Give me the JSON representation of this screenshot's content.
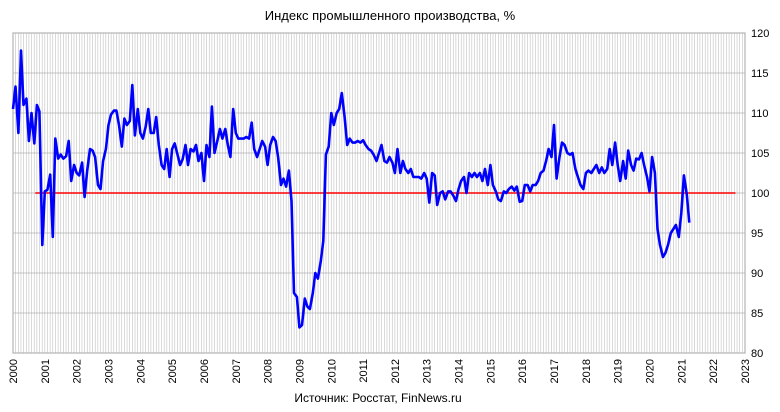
{
  "chart_data": {
    "type": "line",
    "title": "Индекс промышленного производства, %",
    "source": "Источник: Росстат, FinNews.ru",
    "xlabel": "",
    "ylabel": "",
    "x_tick_labels": [
      "2000",
      "2001",
      "2002",
      "2003",
      "2004",
      "2005",
      "2006",
      "2007",
      "2008",
      "2009",
      "2010",
      "2011",
      "2012",
      "2013",
      "2014",
      "2015",
      "2016",
      "2017",
      "2018",
      "2019",
      "2020",
      "2021",
      "2022",
      "2023"
    ],
    "y_tick_labels": [
      "80",
      "85",
      "90",
      "95",
      "100",
      "105",
      "110",
      "115",
      "120"
    ],
    "xlim": [
      2000,
      2023
    ],
    "ylim": [
      80,
      120
    ],
    "grid": true,
    "y_axis_position": "right",
    "reference_line": {
      "value": 100,
      "color": "#ff0000",
      "x_start": 2000.7,
      "x_end": 2022.7
    },
    "series": [
      {
        "color": "#0000ff",
        "points": [
          [
            2000.0,
            110.5
          ],
          [
            2000.08,
            113.3
          ],
          [
            2000.17,
            107.5
          ],
          [
            2000.25,
            117.8
          ],
          [
            2000.33,
            111.0
          ],
          [
            2000.42,
            111.8
          ],
          [
            2000.5,
            106.5
          ],
          [
            2000.58,
            110.0
          ],
          [
            2000.67,
            106.2
          ],
          [
            2000.75,
            111.0
          ],
          [
            2000.83,
            110.2
          ],
          [
            2000.92,
            93.5
          ],
          [
            2001.0,
            100.2
          ],
          [
            2001.08,
            100.4
          ],
          [
            2001.17,
            102.3
          ],
          [
            2001.25,
            94.5
          ],
          [
            2001.33,
            106.8
          ],
          [
            2001.42,
            104.3
          ],
          [
            2001.5,
            104.8
          ],
          [
            2001.58,
            104.3
          ],
          [
            2001.67,
            104.6
          ],
          [
            2001.75,
            106.5
          ],
          [
            2001.83,
            101.5
          ],
          [
            2001.92,
            103.5
          ],
          [
            2002.0,
            102.5
          ],
          [
            2002.08,
            102.2
          ],
          [
            2002.17,
            103.8
          ],
          [
            2002.25,
            99.5
          ],
          [
            2002.33,
            102.8
          ],
          [
            2002.42,
            105.5
          ],
          [
            2002.5,
            105.3
          ],
          [
            2002.58,
            104.5
          ],
          [
            2002.67,
            101.0
          ],
          [
            2002.75,
            100.5
          ],
          [
            2002.83,
            104.0
          ],
          [
            2002.92,
            105.5
          ],
          [
            2003.0,
            108.5
          ],
          [
            2003.08,
            109.8
          ],
          [
            2003.17,
            110.3
          ],
          [
            2003.25,
            110.3
          ],
          [
            2003.33,
            108.5
          ],
          [
            2003.42,
            105.8
          ],
          [
            2003.5,
            109.3
          ],
          [
            2003.58,
            108.5
          ],
          [
            2003.67,
            109.0
          ],
          [
            2003.75,
            113.5
          ],
          [
            2003.83,
            107.2
          ],
          [
            2003.92,
            110.5
          ],
          [
            2004.0,
            107.5
          ],
          [
            2004.08,
            106.8
          ],
          [
            2004.17,
            108.3
          ],
          [
            2004.25,
            110.5
          ],
          [
            2004.33,
            107.5
          ],
          [
            2004.42,
            107.5
          ],
          [
            2004.5,
            109.5
          ],
          [
            2004.58,
            106.0
          ],
          [
            2004.67,
            103.5
          ],
          [
            2004.75,
            103.0
          ],
          [
            2004.83,
            105.5
          ],
          [
            2004.92,
            102.0
          ],
          [
            2005.0,
            105.5
          ],
          [
            2005.08,
            106.2
          ],
          [
            2005.17,
            104.8
          ],
          [
            2005.25,
            103.5
          ],
          [
            2005.33,
            104.2
          ],
          [
            2005.42,
            106.0
          ],
          [
            2005.5,
            103.5
          ],
          [
            2005.58,
            105.5
          ],
          [
            2005.67,
            105.2
          ],
          [
            2005.75,
            106.0
          ],
          [
            2005.83,
            104.0
          ],
          [
            2005.92,
            105.0
          ],
          [
            2006.0,
            101.5
          ],
          [
            2006.08,
            106.0
          ],
          [
            2006.17,
            104.5
          ],
          [
            2006.25,
            110.8
          ],
          [
            2006.33,
            105.0
          ],
          [
            2006.42,
            106.5
          ],
          [
            2006.5,
            108.0
          ],
          [
            2006.58,
            106.8
          ],
          [
            2006.67,
            108.0
          ],
          [
            2006.75,
            106.0
          ],
          [
            2006.83,
            104.5
          ],
          [
            2006.92,
            110.5
          ],
          [
            2007.0,
            107.5
          ],
          [
            2007.08,
            106.8
          ],
          [
            2007.17,
            106.8
          ],
          [
            2007.25,
            106.8
          ],
          [
            2007.33,
            107.0
          ],
          [
            2007.42,
            106.8
          ],
          [
            2007.5,
            108.8
          ],
          [
            2007.58,
            105.5
          ],
          [
            2007.67,
            104.5
          ],
          [
            2007.75,
            105.5
          ],
          [
            2007.83,
            106.5
          ],
          [
            2007.92,
            105.8
          ],
          [
            2008.0,
            103.5
          ],
          [
            2008.08,
            106.0
          ],
          [
            2008.17,
            107.0
          ],
          [
            2008.25,
            106.5
          ],
          [
            2008.33,
            104.5
          ],
          [
            2008.42,
            101.0
          ],
          [
            2008.5,
            101.8
          ],
          [
            2008.58,
            100.8
          ],
          [
            2008.67,
            102.8
          ],
          [
            2008.75,
            99.0
          ],
          [
            2008.83,
            87.5
          ],
          [
            2008.92,
            87.0
          ],
          [
            2009.0,
            83.2
          ],
          [
            2009.08,
            83.5
          ],
          [
            2009.17,
            86.8
          ],
          [
            2009.25,
            85.8
          ],
          [
            2009.33,
            85.5
          ],
          [
            2009.42,
            87.5
          ],
          [
            2009.5,
            90.0
          ],
          [
            2009.58,
            89.3
          ],
          [
            2009.67,
            91.5
          ],
          [
            2009.75,
            94.0
          ],
          [
            2009.83,
            104.8
          ],
          [
            2009.92,
            105.8
          ],
          [
            2010.0,
            110.0
          ],
          [
            2010.08,
            108.5
          ],
          [
            2010.17,
            110.0
          ],
          [
            2010.25,
            110.5
          ],
          [
            2010.33,
            112.5
          ],
          [
            2010.42,
            109.5
          ],
          [
            2010.5,
            106.0
          ],
          [
            2010.58,
            106.8
          ],
          [
            2010.67,
            106.3
          ],
          [
            2010.75,
            106.3
          ],
          [
            2010.83,
            106.5
          ],
          [
            2010.92,
            106.3
          ],
          [
            2011.0,
            106.6
          ],
          [
            2011.08,
            106.0
          ],
          [
            2011.17,
            105.5
          ],
          [
            2011.25,
            105.3
          ],
          [
            2011.33,
            104.8
          ],
          [
            2011.42,
            104.0
          ],
          [
            2011.5,
            105.0
          ],
          [
            2011.58,
            106.0
          ],
          [
            2011.67,
            104.0
          ],
          [
            2011.75,
            103.8
          ],
          [
            2011.83,
            104.5
          ],
          [
            2011.92,
            103.8
          ],
          [
            2012.0,
            102.5
          ],
          [
            2012.08,
            105.5
          ],
          [
            2012.17,
            102.5
          ],
          [
            2012.25,
            104.0
          ],
          [
            2012.33,
            103.0
          ],
          [
            2012.42,
            102.5
          ],
          [
            2012.5,
            103.0
          ],
          [
            2012.58,
            102.0
          ],
          [
            2012.67,
            102.0
          ],
          [
            2012.75,
            102.0
          ],
          [
            2012.83,
            101.8
          ],
          [
            2012.92,
            102.5
          ],
          [
            2013.0,
            101.8
          ],
          [
            2013.08,
            98.8
          ],
          [
            2013.17,
            102.5
          ],
          [
            2013.25,
            102.2
          ],
          [
            2013.33,
            98.5
          ],
          [
            2013.42,
            100.0
          ],
          [
            2013.5,
            100.2
          ],
          [
            2013.58,
            99.2
          ],
          [
            2013.67,
            100.2
          ],
          [
            2013.75,
            100.2
          ],
          [
            2013.83,
            99.7
          ],
          [
            2013.92,
            99.0
          ],
          [
            2014.0,
            100.5
          ],
          [
            2014.08,
            101.5
          ],
          [
            2014.17,
            102.0
          ],
          [
            2014.25,
            100.0
          ],
          [
            2014.33,
            102.5
          ],
          [
            2014.42,
            102.0
          ],
          [
            2014.5,
            102.5
          ],
          [
            2014.58,
            102.0
          ],
          [
            2014.67,
            102.5
          ],
          [
            2014.75,
            101.5
          ],
          [
            2014.83,
            103.0
          ],
          [
            2014.92,
            101.0
          ],
          [
            2015.0,
            103.5
          ],
          [
            2015.08,
            101.0
          ],
          [
            2015.17,
            100.2
          ],
          [
            2015.25,
            99.2
          ],
          [
            2015.33,
            99.0
          ],
          [
            2015.42,
            100.2
          ],
          [
            2015.5,
            100.0
          ],
          [
            2015.58,
            100.5
          ],
          [
            2015.67,
            100.8
          ],
          [
            2015.75,
            100.3
          ],
          [
            2015.83,
            100.8
          ],
          [
            2015.92,
            98.9
          ],
          [
            2016.0,
            99.0
          ],
          [
            2016.08,
            101.0
          ],
          [
            2016.17,
            101.0
          ],
          [
            2016.25,
            100.2
          ],
          [
            2016.33,
            101.0
          ],
          [
            2016.42,
            101.0
          ],
          [
            2016.5,
            101.5
          ],
          [
            2016.58,
            102.5
          ],
          [
            2016.67,
            102.8
          ],
          [
            2016.75,
            104.0
          ],
          [
            2016.83,
            105.5
          ],
          [
            2016.92,
            104.5
          ],
          [
            2017.0,
            108.5
          ],
          [
            2017.08,
            101.8
          ],
          [
            2017.17,
            104.5
          ],
          [
            2017.25,
            106.3
          ],
          [
            2017.33,
            106.0
          ],
          [
            2017.42,
            105.0
          ],
          [
            2017.5,
            104.8
          ],
          [
            2017.58,
            105.0
          ],
          [
            2017.67,
            103.0
          ],
          [
            2017.75,
            102.0
          ],
          [
            2017.83,
            101.0
          ],
          [
            2017.92,
            100.5
          ],
          [
            2018.0,
            102.5
          ],
          [
            2018.08,
            102.8
          ],
          [
            2018.17,
            102.5
          ],
          [
            2018.25,
            103.0
          ],
          [
            2018.33,
            103.5
          ],
          [
            2018.42,
            102.5
          ],
          [
            2018.5,
            103.2
          ],
          [
            2018.58,
            102.5
          ],
          [
            2018.67,
            103.0
          ],
          [
            2018.75,
            105.5
          ],
          [
            2018.83,
            103.5
          ],
          [
            2018.92,
            106.3
          ],
          [
            2019.0,
            103.5
          ],
          [
            2019.08,
            101.5
          ],
          [
            2019.17,
            104.0
          ],
          [
            2019.25,
            101.8
          ],
          [
            2019.33,
            105.3
          ],
          [
            2019.42,
            103.5
          ],
          [
            2019.5,
            102.8
          ],
          [
            2019.58,
            104.3
          ],
          [
            2019.67,
            104.2
          ],
          [
            2019.75,
            105.0
          ],
          [
            2019.83,
            103.5
          ],
          [
            2019.92,
            102.0
          ],
          [
            2020.0,
            100.2
          ],
          [
            2020.08,
            104.5
          ],
          [
            2020.17,
            102.5
          ],
          [
            2020.25,
            95.5
          ],
          [
            2020.33,
            93.5
          ],
          [
            2020.42,
            92.0
          ],
          [
            2020.5,
            92.5
          ],
          [
            2020.58,
            93.5
          ],
          [
            2020.67,
            95.0
          ],
          [
            2020.75,
            95.5
          ],
          [
            2020.83,
            96.0
          ],
          [
            2020.92,
            94.5
          ],
          [
            2021.0,
            97.5
          ],
          [
            2021.08,
            102.2
          ],
          [
            2021.17,
            99.8
          ],
          [
            2021.25,
            96.3
          ]
        ]
      }
    ]
  }
}
